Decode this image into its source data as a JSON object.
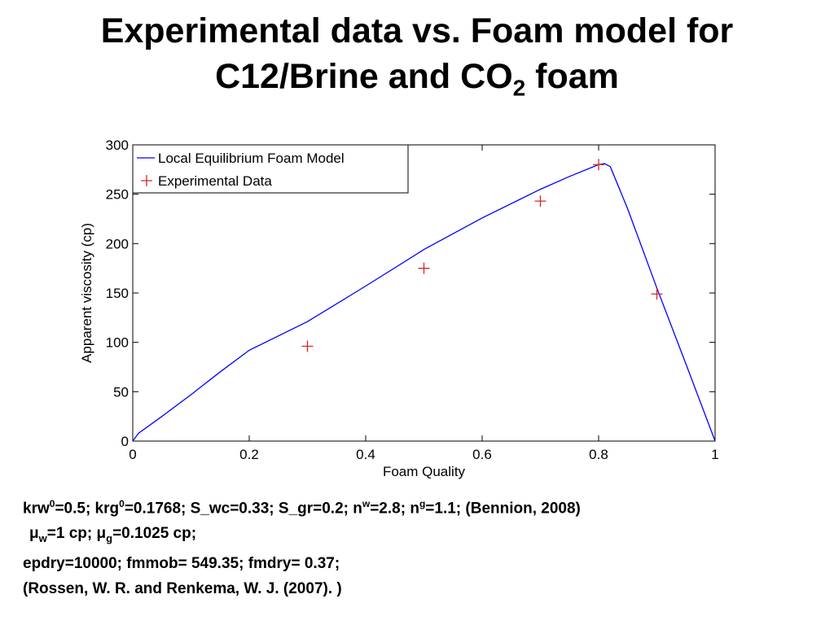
{
  "title": {
    "line1": "Experimental data vs. Foam model for",
    "line2": [
      "C12/Brine and CO",
      "2",
      " foam"
    ]
  },
  "notes": [
    [
      "krw",
      "0",
      "=0.5; krg",
      "0",
      "=0.1768; S_wc=0.33; S_gr=0.2; n",
      "w",
      "=2.8; n",
      "g",
      "=1.1; (Bennion, 2008)"
    ],
    [
      "μ",
      "w",
      "=1 cp; μ",
      "g",
      "=0.1025 cp;"
    ],
    [
      "epdry=10000; fmmob= 549.35; fmdry= 0.37;"
    ],
    [
      "(Rossen, W. R. and Renkema, W. J. (2007). )"
    ]
  ],
  "chart_data": {
    "type": "line",
    "x_label": "Foam Quality",
    "y_label": "Apparent viscosity (cp)",
    "xlim": [
      0,
      1
    ],
    "ylim": [
      0,
      300
    ],
    "xticks": [
      0,
      0.2,
      0.4,
      0.6,
      0.8,
      1
    ],
    "yticks": [
      0,
      50,
      100,
      150,
      200,
      250,
      300
    ],
    "legend": "upper-left",
    "series": [
      {
        "name": "Local Equilibrium Foam Model",
        "color": "#0000ff",
        "marker": "none",
        "x": [
          0,
          0.01,
          0.05,
          0.1,
          0.15,
          0.2,
          0.3,
          0.4,
          0.5,
          0.6,
          0.7,
          0.75,
          0.8,
          0.81,
          0.82,
          0.85,
          0.9,
          0.95,
          1
        ],
        "values": [
          0,
          8,
          25,
          47,
          70,
          92,
          121,
          157,
          194,
          226,
          255,
          268,
          280,
          281,
          278,
          235,
          155,
          78,
          0
        ]
      },
      {
        "name": "Experimental Data",
        "color": "#d62728",
        "marker": "plus",
        "x": [
          0.3,
          0.5,
          0.7,
          0.8,
          0.9
        ],
        "values": [
          96,
          175,
          243,
          280,
          149
        ]
      }
    ]
  }
}
